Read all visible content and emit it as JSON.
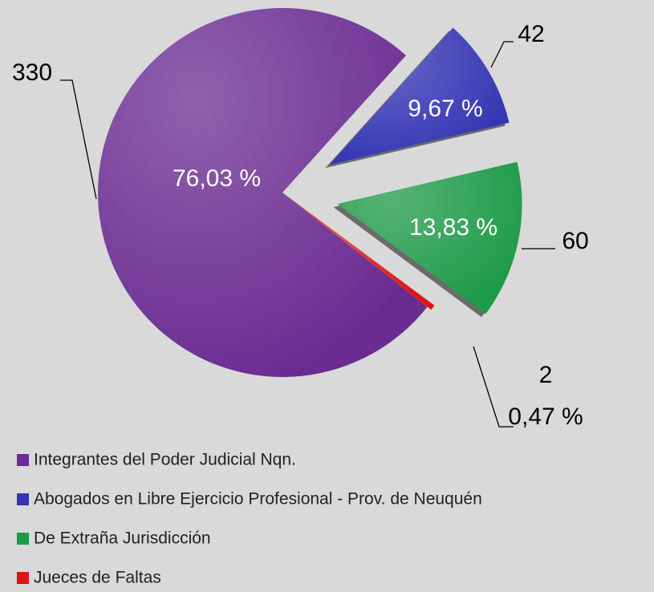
{
  "chart_data": {
    "type": "pie",
    "categories": [
      "Integrantes del Poder Judicial Nqn.",
      "Abogados en Libre Ejercicio Profesional - Prov. de Neuquén",
      "De Extraña Jurisdicción",
      "Jueces de Faltas"
    ],
    "values": [
      330,
      42,
      60,
      2
    ],
    "percentages": [
      76.03,
      9.67,
      13.83,
      0.47
    ],
    "percentage_labels": [
      "76,03 %",
      "9,67 %",
      "13,83 %",
      "0,47 %"
    ],
    "colors": [
      "#6b2c91",
      "#3434b4",
      "#1e9a48",
      "#e01414"
    ],
    "legend": "bottom-left"
  }
}
